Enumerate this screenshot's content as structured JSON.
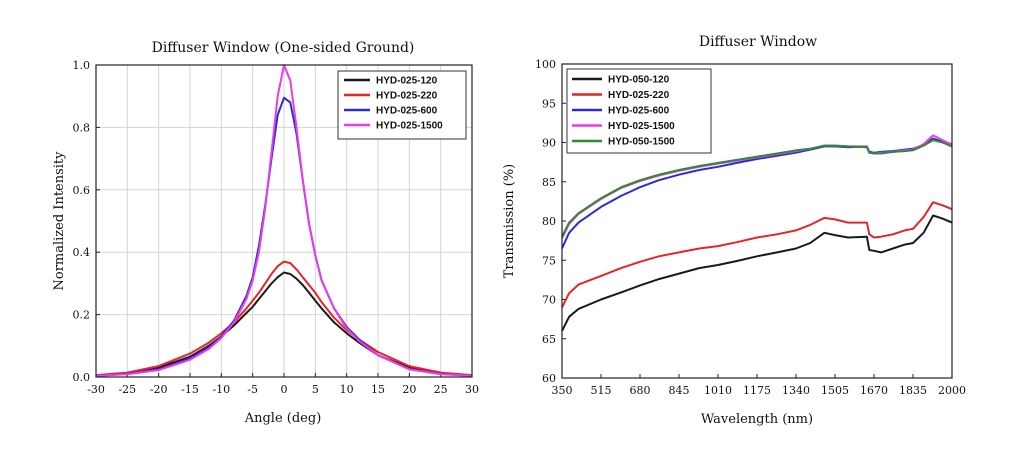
{
  "chart_data": [
    {
      "type": "line",
      "title": "Diffuser Window (One-sided Ground)",
      "xlabel": "Angle (deg)",
      "ylabel": "Normalized Intensity",
      "xlim": [
        -30,
        30
      ],
      "ylim": [
        0.0,
        1.0
      ],
      "xticks": [
        -30,
        -25,
        -20,
        -15,
        -10,
        -5,
        0,
        5,
        10,
        15,
        20,
        25,
        30
      ],
      "yticks": [
        0.0,
        0.2,
        0.4,
        0.6,
        0.8,
        1.0
      ],
      "ytick_labels": [
        "0.0",
        "0.2",
        "0.4",
        "0.6",
        "0.8",
        "1.0"
      ],
      "grid": true,
      "legend_position": "top-right",
      "x": [
        -30,
        -25,
        -20,
        -15,
        -12,
        -10,
        -8,
        -6,
        -5,
        -4,
        -3,
        -2,
        -1,
        0,
        1,
        2,
        3,
        4,
        5,
        6,
        8,
        10,
        12,
        15,
        20,
        25,
        30
      ],
      "series": [
        {
          "name": "HYD-025-120",
          "color": "#1a1a1a",
          "values": [
            0.005,
            0.012,
            0.03,
            0.065,
            0.1,
            0.13,
            0.165,
            0.205,
            0.225,
            0.25,
            0.275,
            0.3,
            0.32,
            0.335,
            0.33,
            0.315,
            0.295,
            0.27,
            0.245,
            0.22,
            0.175,
            0.14,
            0.11,
            0.07,
            0.03,
            0.012,
            0.005
          ]
        },
        {
          "name": "HYD-025-220",
          "color": "#e32626",
          "values": [
            0.006,
            0.014,
            0.035,
            0.075,
            0.11,
            0.14,
            0.175,
            0.22,
            0.245,
            0.27,
            0.3,
            0.33,
            0.355,
            0.37,
            0.365,
            0.345,
            0.32,
            0.295,
            0.27,
            0.24,
            0.19,
            0.15,
            0.12,
            0.08,
            0.035,
            0.014,
            0.006
          ]
        },
        {
          "name": "HYD-025-600",
          "color": "#2b2bd6",
          "values": [
            0.004,
            0.01,
            0.025,
            0.06,
            0.095,
            0.13,
            0.18,
            0.26,
            0.32,
            0.42,
            0.55,
            0.7,
            0.84,
            0.895,
            0.88,
            0.78,
            0.63,
            0.49,
            0.39,
            0.31,
            0.22,
            0.16,
            0.12,
            0.07,
            0.025,
            0.01,
            0.004
          ]
        },
        {
          "name": "HYD-025-1500",
          "color": "#e83de8",
          "values": [
            0.004,
            0.009,
            0.022,
            0.055,
            0.09,
            0.125,
            0.175,
            0.25,
            0.31,
            0.4,
            0.54,
            0.72,
            0.9,
            1.0,
            0.95,
            0.8,
            0.63,
            0.49,
            0.39,
            0.31,
            0.22,
            0.155,
            0.115,
            0.07,
            0.025,
            0.009,
            0.004
          ]
        }
      ]
    },
    {
      "type": "line",
      "title": "Diffuser Window",
      "xlabel": "Wavelength (nm)",
      "ylabel": "Transmission (%)",
      "xlim": [
        350,
        2000
      ],
      "ylim": [
        60,
        100
      ],
      "xticks": [
        350,
        515,
        680,
        845,
        1010,
        1175,
        1340,
        1505,
        1670,
        1835,
        2000
      ],
      "yticks": [
        60,
        65,
        70,
        75,
        80,
        85,
        90,
        95,
        100
      ],
      "ytick_labels": [
        "60",
        "65",
        "70",
        "75",
        "80",
        "85",
        "90",
        "95",
        "100"
      ],
      "grid": false,
      "legend_position": "top-left",
      "x": [
        350,
        380,
        420,
        515,
        600,
        680,
        760,
        845,
        930,
        1010,
        1090,
        1175,
        1260,
        1340,
        1400,
        1460,
        1505,
        1560,
        1640,
        1650,
        1670,
        1700,
        1750,
        1800,
        1835,
        1880,
        1920,
        1960,
        2000
      ],
      "series": [
        {
          "name": "HYD-050-120",
          "color": "#1a1a1a",
          "values": [
            66.0,
            67.8,
            68.8,
            70.0,
            70.9,
            71.8,
            72.6,
            73.3,
            74.0,
            74.4,
            74.9,
            75.5,
            76.0,
            76.5,
            77.2,
            78.5,
            78.2,
            77.9,
            78.0,
            76.3,
            76.2,
            76.0,
            76.5,
            77.0,
            77.2,
            78.5,
            80.7,
            80.3,
            79.8
          ]
        },
        {
          "name": "HYD-025-220",
          "color": "#e32626",
          "values": [
            69.0,
            70.8,
            71.9,
            73.0,
            74.0,
            74.8,
            75.5,
            76.0,
            76.5,
            76.8,
            77.3,
            77.9,
            78.3,
            78.8,
            79.5,
            80.4,
            80.2,
            79.8,
            79.8,
            78.3,
            77.9,
            78.0,
            78.3,
            78.8,
            79.0,
            80.5,
            82.4,
            82.0,
            81.5
          ]
        },
        {
          "name": "HYD-025-600",
          "color": "#2b2bd6",
          "values": [
            76.5,
            78.5,
            79.8,
            81.8,
            83.2,
            84.3,
            85.2,
            85.9,
            86.5,
            86.9,
            87.4,
            87.9,
            88.3,
            88.7,
            89.1,
            89.5,
            89.5,
            89.4,
            89.5,
            88.8,
            88.7,
            88.8,
            88.9,
            89.1,
            89.2,
            89.7,
            90.5,
            90.1,
            89.8
          ]
        },
        {
          "name": "HYD-025-1500",
          "color": "#e83de8",
          "values": [
            77.8,
            79.6,
            80.9,
            82.8,
            84.2,
            85.1,
            85.8,
            86.4,
            86.9,
            87.3,
            87.7,
            88.1,
            88.5,
            88.9,
            89.2,
            89.6,
            89.6,
            89.5,
            89.5,
            88.7,
            88.6,
            88.7,
            88.8,
            89.0,
            89.1,
            89.8,
            90.9,
            90.3,
            89.7
          ]
        },
        {
          "name": "HYD-050-1500",
          "color": "#2e8b2e",
          "values": [
            78.0,
            79.8,
            81.0,
            82.9,
            84.3,
            85.2,
            85.9,
            86.5,
            87.0,
            87.4,
            87.8,
            88.2,
            88.6,
            89.0,
            89.2,
            89.6,
            89.6,
            89.5,
            89.4,
            88.7,
            88.6,
            88.6,
            88.8,
            88.9,
            89.0,
            89.6,
            90.3,
            90.0,
            89.5
          ]
        }
      ]
    }
  ]
}
